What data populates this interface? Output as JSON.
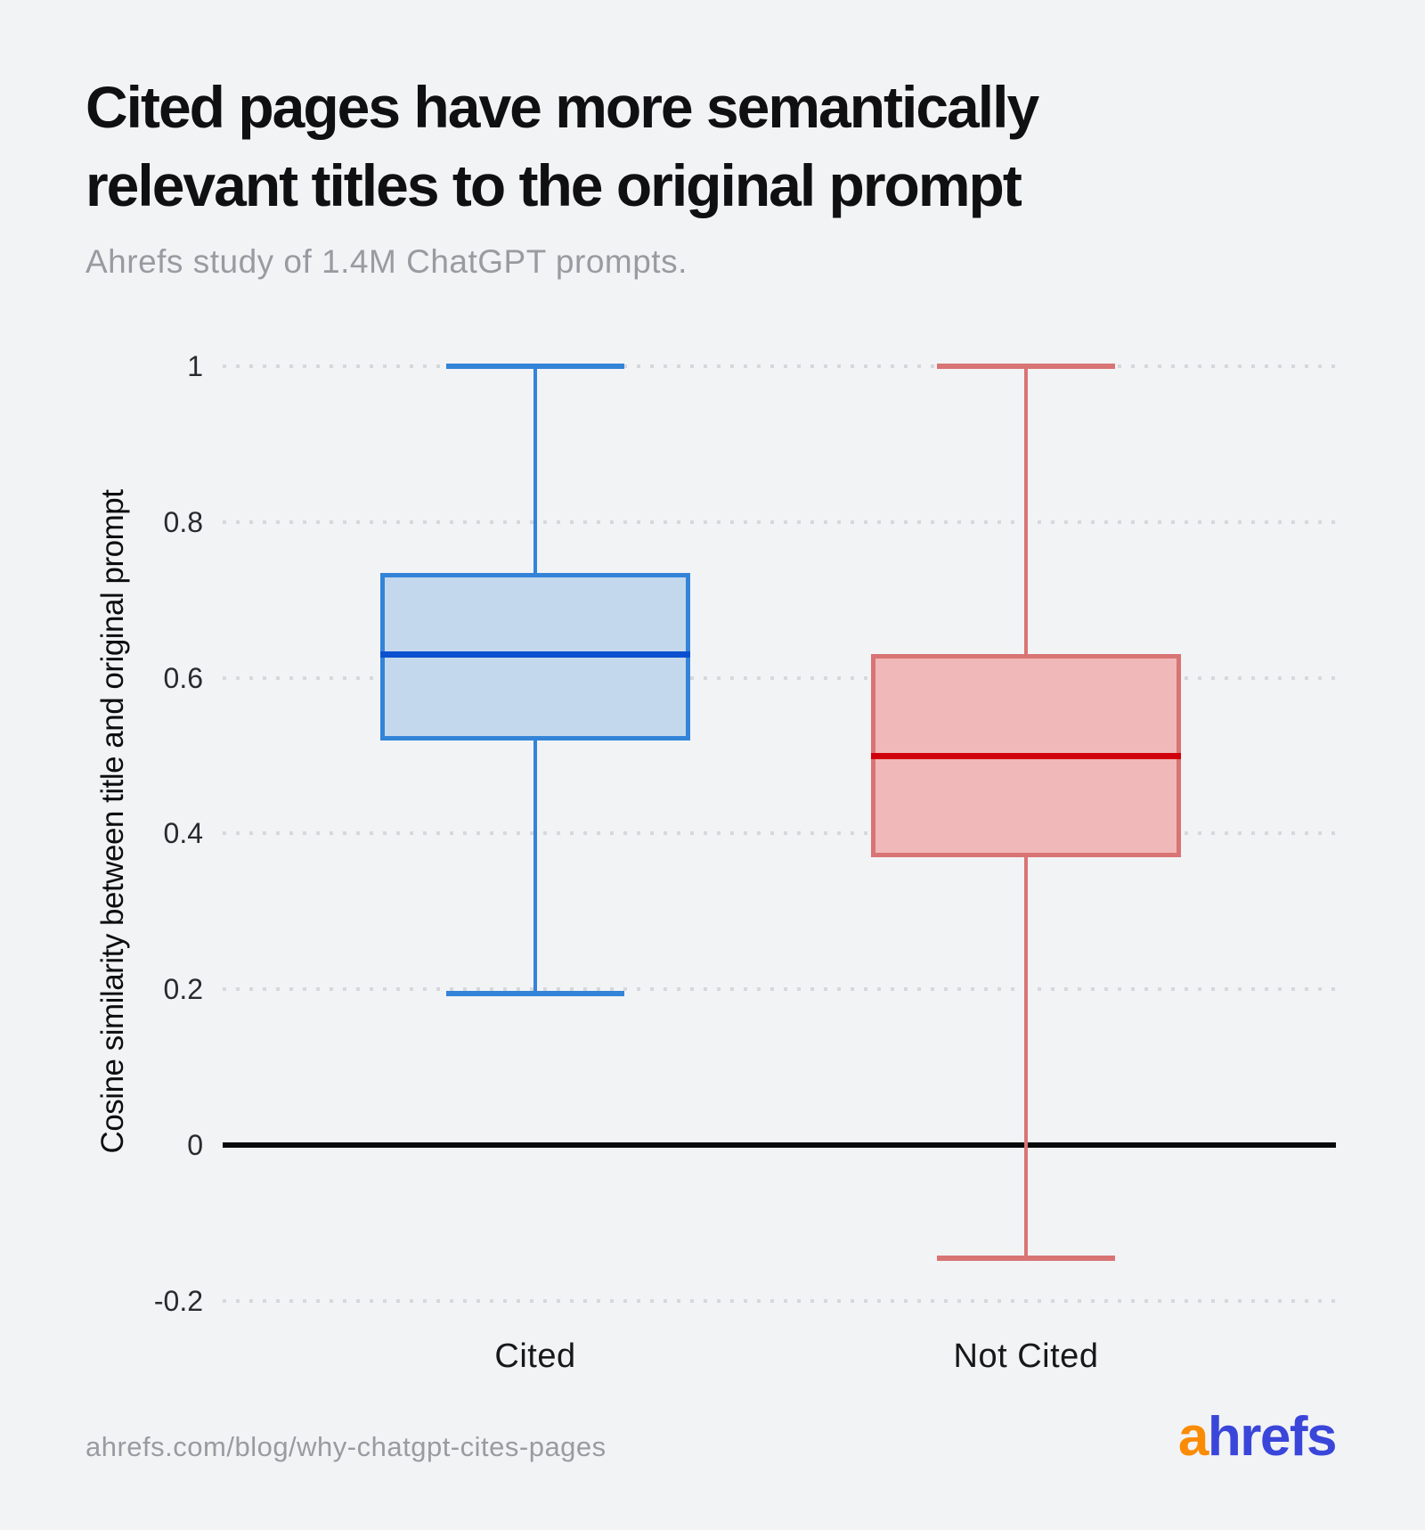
{
  "header": {
    "title_lines": [
      "Cited pages have more semantically",
      "relevant titles to the original prompt"
    ],
    "subtitle": "Ahrefs study of 1.4M ChatGPT prompts."
  },
  "chart_data": {
    "type": "boxplot",
    "title": "Cited pages have more semantically relevant titles to the original prompt",
    "subtitle": "Ahrefs study of 1.4M ChatGPT prompts.",
    "ylabel": "Cosine similarity between title and original prompt",
    "xlabel": "",
    "ylim": [
      -0.28,
      1.06
    ],
    "grid": "horizontal dotted gridlines; solid black line at y=0; no legend",
    "yticks": [
      {
        "v": 1,
        "label": "1"
      },
      {
        "v": 0.8,
        "label": "0.8"
      },
      {
        "v": 0.6,
        "label": "0.6"
      },
      {
        "v": 0.4,
        "label": "0.4"
      },
      {
        "v": 0.2,
        "label": "0.2"
      },
      {
        "v": 0,
        "label": "0"
      },
      {
        "v": -0.2,
        "label": "-0.2"
      }
    ],
    "categories": [
      "Cited",
      "Not Cited"
    ],
    "series": [
      {
        "name": "Cited",
        "min": 0.195,
        "q1": 0.52,
        "median": 0.63,
        "q3": 0.735,
        "max": 1.0,
        "border_color": "#3384d8",
        "fill_color": "#c3d8ed",
        "median_color": "#0a50cf"
      },
      {
        "name": "Not Cited",
        "min": -0.145,
        "q1": 0.37,
        "median": 0.5,
        "q3": 0.63,
        "max": 1.0,
        "border_color": "#d97474",
        "fill_color": "#f1b8b9",
        "median_color": "#d0000c"
      }
    ]
  },
  "footer": {
    "url": "ahrefs.com/blog/why-chatgpt-cites-pages",
    "logo": {
      "prefix": "a",
      "rest": "hrefs",
      "prefix_color": "#fa8b05",
      "rest_color": "#3a46d9"
    }
  },
  "colors": {
    "background": "#f2f3f5",
    "title": "#101013",
    "subtitle": "#9a9ba1",
    "tick_label": "#2a2a2e",
    "gridline": "#d7d8db",
    "zero_line": "#0a0a0a",
    "category_label": "#18181b"
  }
}
